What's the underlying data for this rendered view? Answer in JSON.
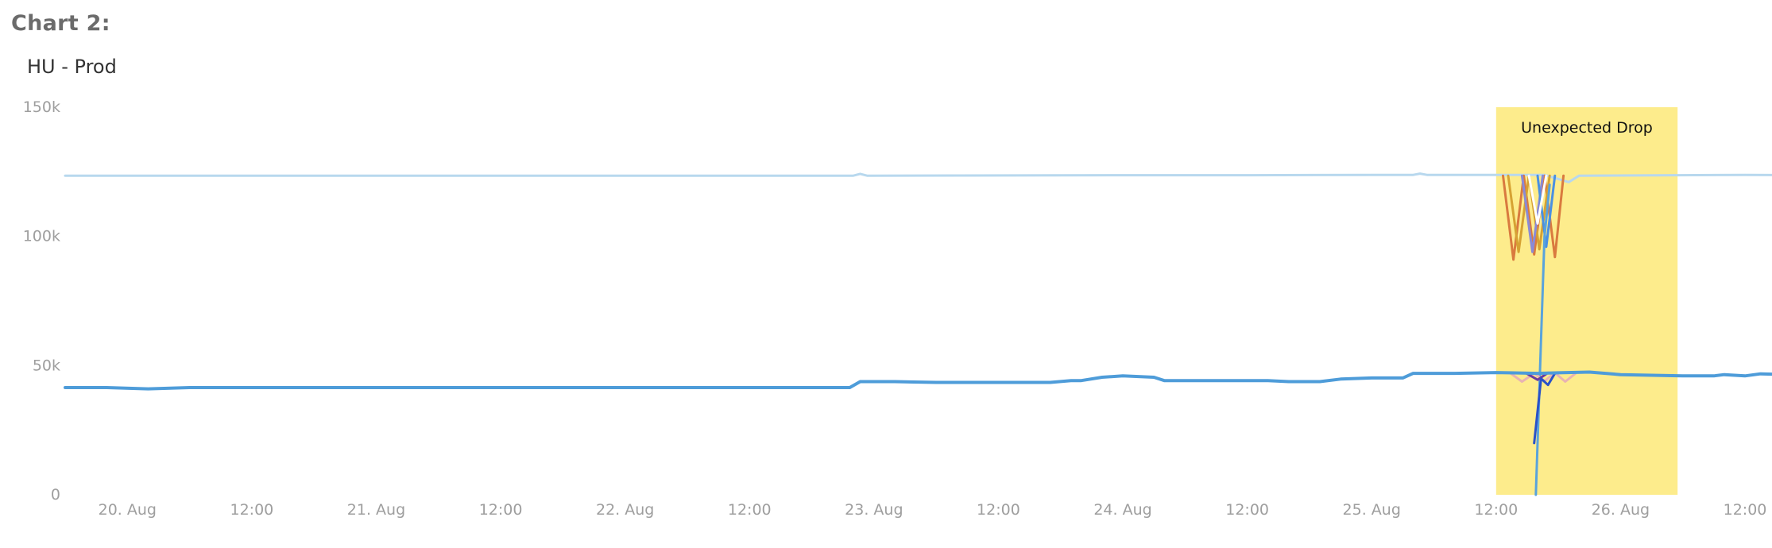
{
  "heading": "Chart 2:",
  "chart_data": {
    "type": "line",
    "title": "HU - Prod",
    "xlabel": "",
    "ylabel": "",
    "x_range": [
      "2022-08-19T18:00",
      "2022-08-26T12:00"
    ],
    "ylim": [
      0,
      150000
    ],
    "y_ticks": [
      {
        "value": 0,
        "label": "0"
      },
      {
        "value": 50000,
        "label": "50k"
      },
      {
        "value": 100000,
        "label": "100k"
      },
      {
        "value": 150000,
        "label": "150k"
      }
    ],
    "x_ticks": [
      {
        "t": "2022-08-20T00:00",
        "label": "20. Aug"
      },
      {
        "t": "2022-08-20T12:00",
        "label": "12:00"
      },
      {
        "t": "2022-08-21T00:00",
        "label": "21. Aug"
      },
      {
        "t": "2022-08-21T12:00",
        "label": "12:00"
      },
      {
        "t": "2022-08-22T00:00",
        "label": "22. Aug"
      },
      {
        "t": "2022-08-22T12:00",
        "label": "12:00"
      },
      {
        "t": "2022-08-23T00:00",
        "label": "23. Aug"
      },
      {
        "t": "2022-08-23T12:00",
        "label": "12:00"
      },
      {
        "t": "2022-08-24T00:00",
        "label": "24. Aug"
      },
      {
        "t": "2022-08-24T12:00",
        "label": "12:00"
      },
      {
        "t": "2022-08-25T00:00",
        "label": "25. Aug"
      },
      {
        "t": "2022-08-25T12:00",
        "label": "12:00"
      },
      {
        "t": "2022-08-26T00:00",
        "label": "26. Aug"
      },
      {
        "t": "2022-08-26T12:00",
        "label": "12:00"
      }
    ],
    "grid": false,
    "legend": "none",
    "plot_bands": [
      {
        "from": "2022-08-25T12:00",
        "to": "2022-08-26T05:30",
        "color": "#fdec8c",
        "label": "Unexpected Drop"
      }
    ],
    "series": [
      {
        "color": "#b8d8ee",
        "width": 3,
        "points": [
          [
            "2022-08-19T18:00",
            123500
          ],
          [
            "2022-08-20T12:00",
            123500
          ],
          [
            "2022-08-21T12:00",
            123500
          ],
          [
            "2022-08-22T12:00",
            123500
          ],
          [
            "2022-08-22T22:00",
            123500
          ],
          [
            "2022-08-22T22:40",
            124200
          ],
          [
            "2022-08-22T23:20",
            123500
          ],
          [
            "2022-08-24T00:00",
            123700
          ],
          [
            "2022-08-24T12:00",
            123700
          ],
          [
            "2022-08-25T00:00",
            123800
          ],
          [
            "2022-08-25T04:00",
            123800
          ],
          [
            "2022-08-25T04:40",
            124300
          ],
          [
            "2022-08-25T05:20",
            123800
          ],
          [
            "2022-08-25T12:00",
            123800
          ],
          [
            "2022-08-25T16:40",
            123800
          ],
          [
            "2022-08-25T19:00",
            121000
          ],
          [
            "2022-08-25T20:00",
            123500
          ],
          [
            "2022-08-26T12:00",
            123800
          ],
          [
            "2022-08-26T16:30",
            123700
          ]
        ]
      },
      {
        "color": "#d97a3f",
        "width": 3,
        "points": [
          [
            "2022-08-25T12:40",
            123500
          ],
          [
            "2022-08-25T13:40",
            91000
          ],
          [
            "2022-08-25T14:40",
            123500
          ],
          [
            "2022-08-25T15:40",
            93000
          ],
          [
            "2022-08-25T16:40",
            123500
          ],
          [
            "2022-08-25T17:40",
            92000
          ],
          [
            "2022-08-25T18:30",
            123500
          ]
        ]
      },
      {
        "color": "#d6a233",
        "width": 3,
        "points": [
          [
            "2022-08-25T13:10",
            123500
          ],
          [
            "2022-08-25T14:10",
            94000
          ],
          [
            "2022-08-25T15:10",
            123500
          ],
          [
            "2022-08-25T16:10",
            95000
          ],
          [
            "2022-08-25T17:10",
            123500
          ]
        ]
      },
      {
        "color": "#8a8ad6",
        "width": 3,
        "points": [
          [
            "2022-08-25T14:30",
            123500
          ],
          [
            "2022-08-25T15:30",
            94000
          ],
          [
            "2022-08-25T16:30",
            123500
          ]
        ]
      },
      {
        "color": "#4a90e2",
        "width": 3,
        "points": [
          [
            "2022-08-25T16:00",
            123500
          ],
          [
            "2022-08-25T16:50",
            96000
          ],
          [
            "2022-08-25T17:40",
            123500
          ]
        ]
      },
      {
        "color": "#ffffff",
        "width": 3,
        "points": [
          [
            "2022-08-25T15:10",
            123500
          ],
          [
            "2022-08-25T16:00",
            105000
          ],
          [
            "2022-08-25T16:50",
            123500
          ]
        ]
      },
      {
        "color": "#59a3dc",
        "width": 3,
        "points": [
          [
            "2022-08-25T15:50",
            0
          ],
          [
            "2022-08-25T16:40",
            100000
          ],
          [
            "2022-08-25T17:10",
            120000
          ]
        ]
      },
      {
        "color": "#e8b3b3",
        "width": 3,
        "points": [
          [
            "2022-08-25T13:20",
            47200
          ],
          [
            "2022-08-25T14:30",
            43800
          ],
          [
            "2022-08-25T15:40",
            47000
          ],
          [
            "2022-08-25T16:40",
            44000
          ],
          [
            "2022-08-25T17:40",
            47200
          ],
          [
            "2022-08-25T18:40",
            43800
          ],
          [
            "2022-08-25T19:40",
            47000
          ]
        ]
      },
      {
        "color": "#6b3aa0",
        "width": 3,
        "points": [
          [
            "2022-08-25T14:50",
            47200
          ],
          [
            "2022-08-25T16:00",
            44500
          ],
          [
            "2022-08-25T17:00",
            47200
          ]
        ]
      },
      {
        "color": "#2a52c8",
        "width": 3,
        "points": [
          [
            "2022-08-25T15:40",
            20000
          ],
          [
            "2022-08-25T16:20",
            45000
          ],
          [
            "2022-08-25T17:00",
            42500
          ],
          [
            "2022-08-25T17:40",
            47000
          ]
        ]
      },
      {
        "color": "#4e9cd9",
        "width": 4,
        "points": [
          [
            "2022-08-19T18:00",
            41500
          ],
          [
            "2022-08-19T22:00",
            41500
          ],
          [
            "2022-08-20T02:00",
            41000
          ],
          [
            "2022-08-20T06:00",
            41500
          ],
          [
            "2022-08-20T18:00",
            41500
          ],
          [
            "2022-08-21T00:00",
            41500
          ],
          [
            "2022-08-21T12:00",
            41500
          ],
          [
            "2022-08-22T00:00",
            41500
          ],
          [
            "2022-08-22T12:00",
            41500
          ],
          [
            "2022-08-22T19:00",
            41500
          ],
          [
            "2022-08-22T21:40",
            41500
          ],
          [
            "2022-08-22T22:40",
            43800
          ],
          [
            "2022-08-23T02:00",
            43800
          ],
          [
            "2022-08-23T06:00",
            43500
          ],
          [
            "2022-08-23T12:00",
            43500
          ],
          [
            "2022-08-23T17:00",
            43500
          ],
          [
            "2022-08-23T19:00",
            44200
          ],
          [
            "2022-08-23T20:00",
            44200
          ],
          [
            "2022-08-23T22:00",
            45500
          ],
          [
            "2022-08-24T00:00",
            46000
          ],
          [
            "2022-08-24T03:00",
            45500
          ],
          [
            "2022-08-24T04:00",
            44200
          ],
          [
            "2022-08-24T12:00",
            44200
          ],
          [
            "2022-08-24T14:00",
            44200
          ],
          [
            "2022-08-24T16:00",
            43800
          ],
          [
            "2022-08-24T19:00",
            43800
          ],
          [
            "2022-08-24T21:00",
            44800
          ],
          [
            "2022-08-25T00:00",
            45200
          ],
          [
            "2022-08-25T03:00",
            45200
          ],
          [
            "2022-08-25T04:00",
            47000
          ],
          [
            "2022-08-25T08:00",
            47000
          ],
          [
            "2022-08-25T12:00",
            47300
          ],
          [
            "2022-08-25T16:00",
            47000
          ],
          [
            "2022-08-25T18:00",
            47200
          ],
          [
            "2022-08-25T21:00",
            47500
          ],
          [
            "2022-08-26T00:00",
            46500
          ],
          [
            "2022-08-26T06:00",
            46000
          ],
          [
            "2022-08-26T09:00",
            46000
          ],
          [
            "2022-08-26T10:00",
            46500
          ],
          [
            "2022-08-26T12:00",
            46000
          ],
          [
            "2022-08-26T13:30",
            46800
          ],
          [
            "2022-08-26T16:30",
            46500
          ]
        ]
      }
    ]
  }
}
